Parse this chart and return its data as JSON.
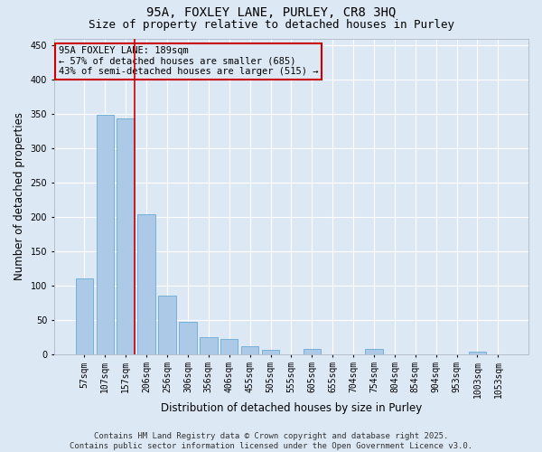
{
  "title": "95A, FOXLEY LANE, PURLEY, CR8 3HQ",
  "subtitle": "Size of property relative to detached houses in Purley",
  "xlabel": "Distribution of detached houses by size in Purley",
  "ylabel": "Number of detached properties",
  "categories": [
    "57sqm",
    "107sqm",
    "157sqm",
    "206sqm",
    "256sqm",
    "306sqm",
    "356sqm",
    "406sqm",
    "455sqm",
    "505sqm",
    "555sqm",
    "605sqm",
    "655sqm",
    "704sqm",
    "754sqm",
    "804sqm",
    "854sqm",
    "904sqm",
    "953sqm",
    "1003sqm",
    "1053sqm"
  ],
  "values": [
    110,
    348,
    344,
    204,
    85,
    47,
    25,
    22,
    11,
    6,
    0,
    7,
    0,
    0,
    7,
    0,
    0,
    0,
    0,
    3,
    0
  ],
  "bar_color": "#adc9e8",
  "bar_edge_color": "#6aaad4",
  "bg_color": "#dde8f5",
  "grid_color": "#ffffff",
  "vline_color": "#cc0000",
  "vline_pos": 2.42,
  "annotation_text": "95A FOXLEY LANE: 189sqm\n← 57% of detached houses are smaller (685)\n43% of semi-detached houses are larger (515) →",
  "annotation_box_color": "#cc0000",
  "annotation_bg_color": "#dde8f5",
  "ylim": [
    0,
    460
  ],
  "yticks": [
    0,
    50,
    100,
    150,
    200,
    250,
    300,
    350,
    400,
    450
  ],
  "footer": "Contains HM Land Registry data © Crown copyright and database right 2025.\nContains public sector information licensed under the Open Government Licence v3.0.",
  "title_fontsize": 10,
  "subtitle_fontsize": 9,
  "axis_label_fontsize": 8.5,
  "tick_fontsize": 7,
  "annot_fontsize": 7.5,
  "footer_fontsize": 6.5
}
